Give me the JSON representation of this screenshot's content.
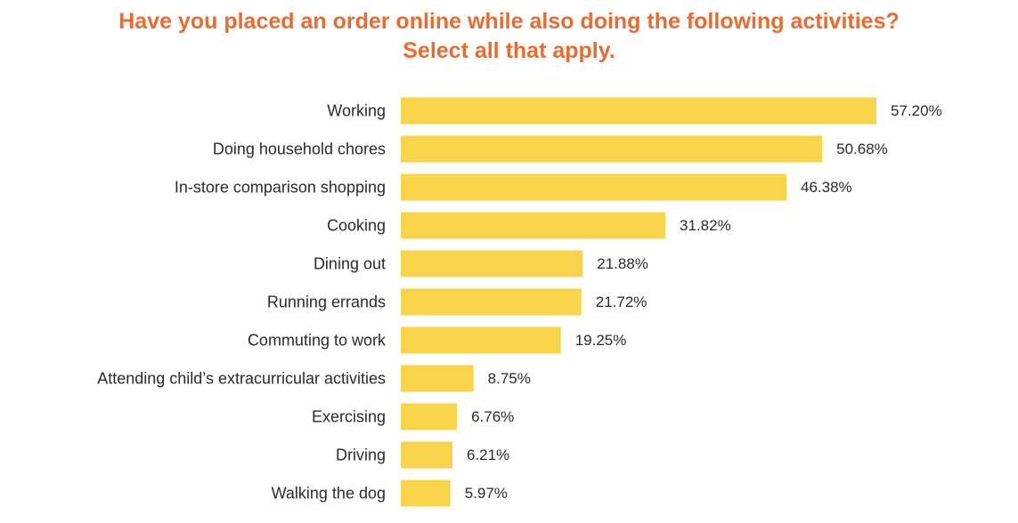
{
  "colors": {
    "title": "#EC6A2E",
    "bar": "#F8D44A",
    "text": "#2B2B2B",
    "background": "#FFFFFF"
  },
  "chart_data": {
    "type": "bar",
    "orientation": "horizontal",
    "title": "Have you placed an order online while also doing the following activities?",
    "subtitle": "Select all that apply.",
    "xlabel": "",
    "ylabel": "",
    "xlim": [
      0,
      57.2
    ],
    "grid": false,
    "legend": "none",
    "categories": [
      "Working",
      "Doing household chores",
      "In-store comparison shopping",
      "Cooking",
      "Dining out",
      "Running errands",
      "Commuting to work",
      "Attending child’s extracurricular activities",
      "Exercising",
      "Driving",
      "Walking the dog"
    ],
    "values": [
      57.2,
      50.68,
      46.38,
      31.82,
      21.88,
      21.72,
      19.25,
      8.75,
      6.76,
      6.21,
      5.97
    ],
    "value_labels": [
      "57.20%",
      "50.68%",
      "46.38%",
      "31.82%",
      "21.88%",
      "21.72%",
      "19.25%",
      "8.75%",
      "6.76%",
      "6.21%",
      "5.97%"
    ]
  }
}
